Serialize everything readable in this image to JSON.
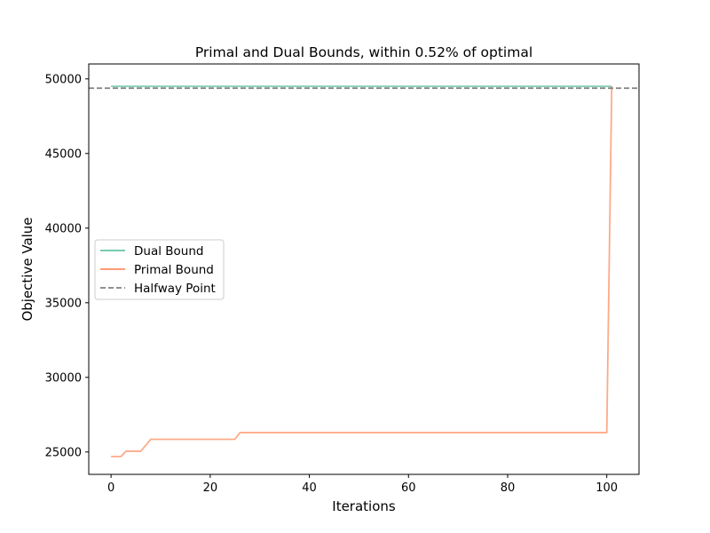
{
  "chart_data": {
    "type": "line",
    "title": "Primal and Dual Bounds, within 0.52% of optimal",
    "xlabel": "Iterations",
    "ylabel": "Objective Value",
    "xlim": [
      -4.5,
      106.5
    ],
    "ylim": [
      23500,
      51000
    ],
    "xticks": [
      0,
      20,
      40,
      60,
      80,
      100
    ],
    "yticks": [
      25000,
      30000,
      35000,
      40000,
      45000,
      50000
    ],
    "grid": false,
    "legend_position": "center-left",
    "series": [
      {
        "name": "Dual Bound",
        "color": "#66c2a5",
        "style": "solid",
        "points": [
          [
            0,
            49500
          ],
          [
            101,
            49500
          ]
        ]
      },
      {
        "name": "Primal Bound",
        "color": "#fc8d62",
        "style": "solid",
        "points": [
          [
            0,
            24700
          ],
          [
            2,
            24700
          ],
          [
            3,
            25050
          ],
          [
            6,
            25050
          ],
          [
            8,
            25850
          ],
          [
            25,
            25850
          ],
          [
            26,
            26300
          ],
          [
            100,
            26300
          ],
          [
            101,
            49500
          ]
        ]
      },
      {
        "name": "Halfway Point",
        "color": "#808080",
        "style": "dashed",
        "hline": 49380
      }
    ]
  }
}
